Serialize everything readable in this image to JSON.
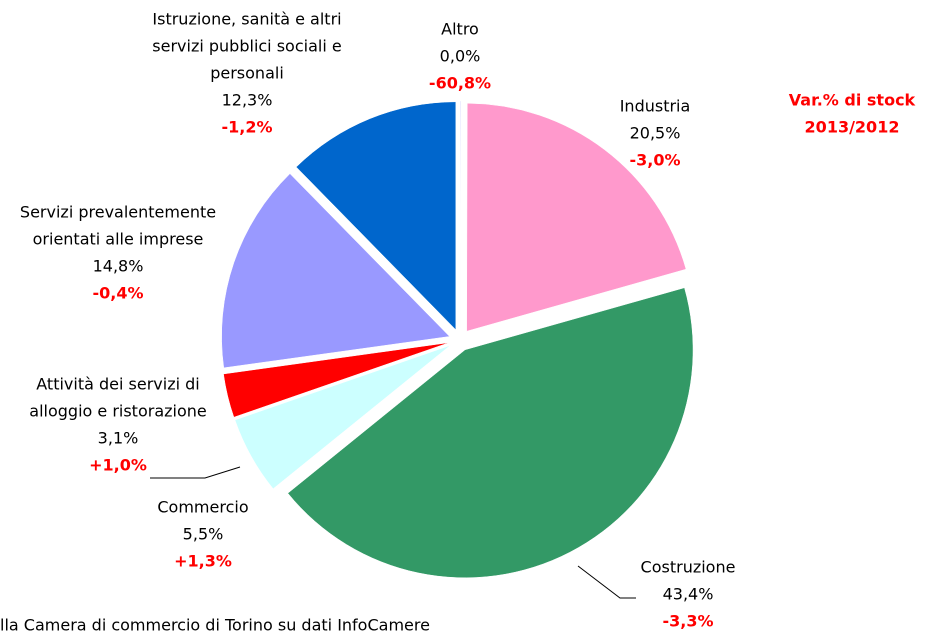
{
  "chart_data": {
    "type": "pie",
    "categories": [
      [
        "Altro"
      ],
      [
        "Industria"
      ],
      [
        "Costruzione"
      ],
      [
        "Commercio"
      ],
      [
        "Attività dei servizi di",
        "alloggio e ristorazione"
      ],
      [
        "Servizi prevalentemente",
        "orientati alle imprese"
      ],
      [
        "Istruzione, sanità e altri",
        "servizi pubblici sociali e",
        "personali"
      ]
    ],
    "values": [
      0.04,
      20.5,
      43.4,
      5.5,
      3.1,
      14.8,
      12.3
    ],
    "value_labels": [
      "0,0%",
      "20,5%",
      "43,4%",
      "5,5%",
      "3,1%",
      "14,8%",
      "12,3%"
    ],
    "variation_labels": [
      "-60,8%",
      "-3,0%",
      "-3,3%",
      "+1,3%",
      "+1,0%",
      "-0,4%",
      "-1,2%"
    ],
    "colors": [
      "#9999ff",
      "#ff99cc",
      "#339966",
      "#ccffff",
      "#ff0000",
      "#9999ff",
      "#0066cc"
    ],
    "annotation": [
      "Var.% di stock",
      "2013/2012"
    ],
    "source": "lla Camera di commercio di Torino su dati InfoCamere"
  }
}
